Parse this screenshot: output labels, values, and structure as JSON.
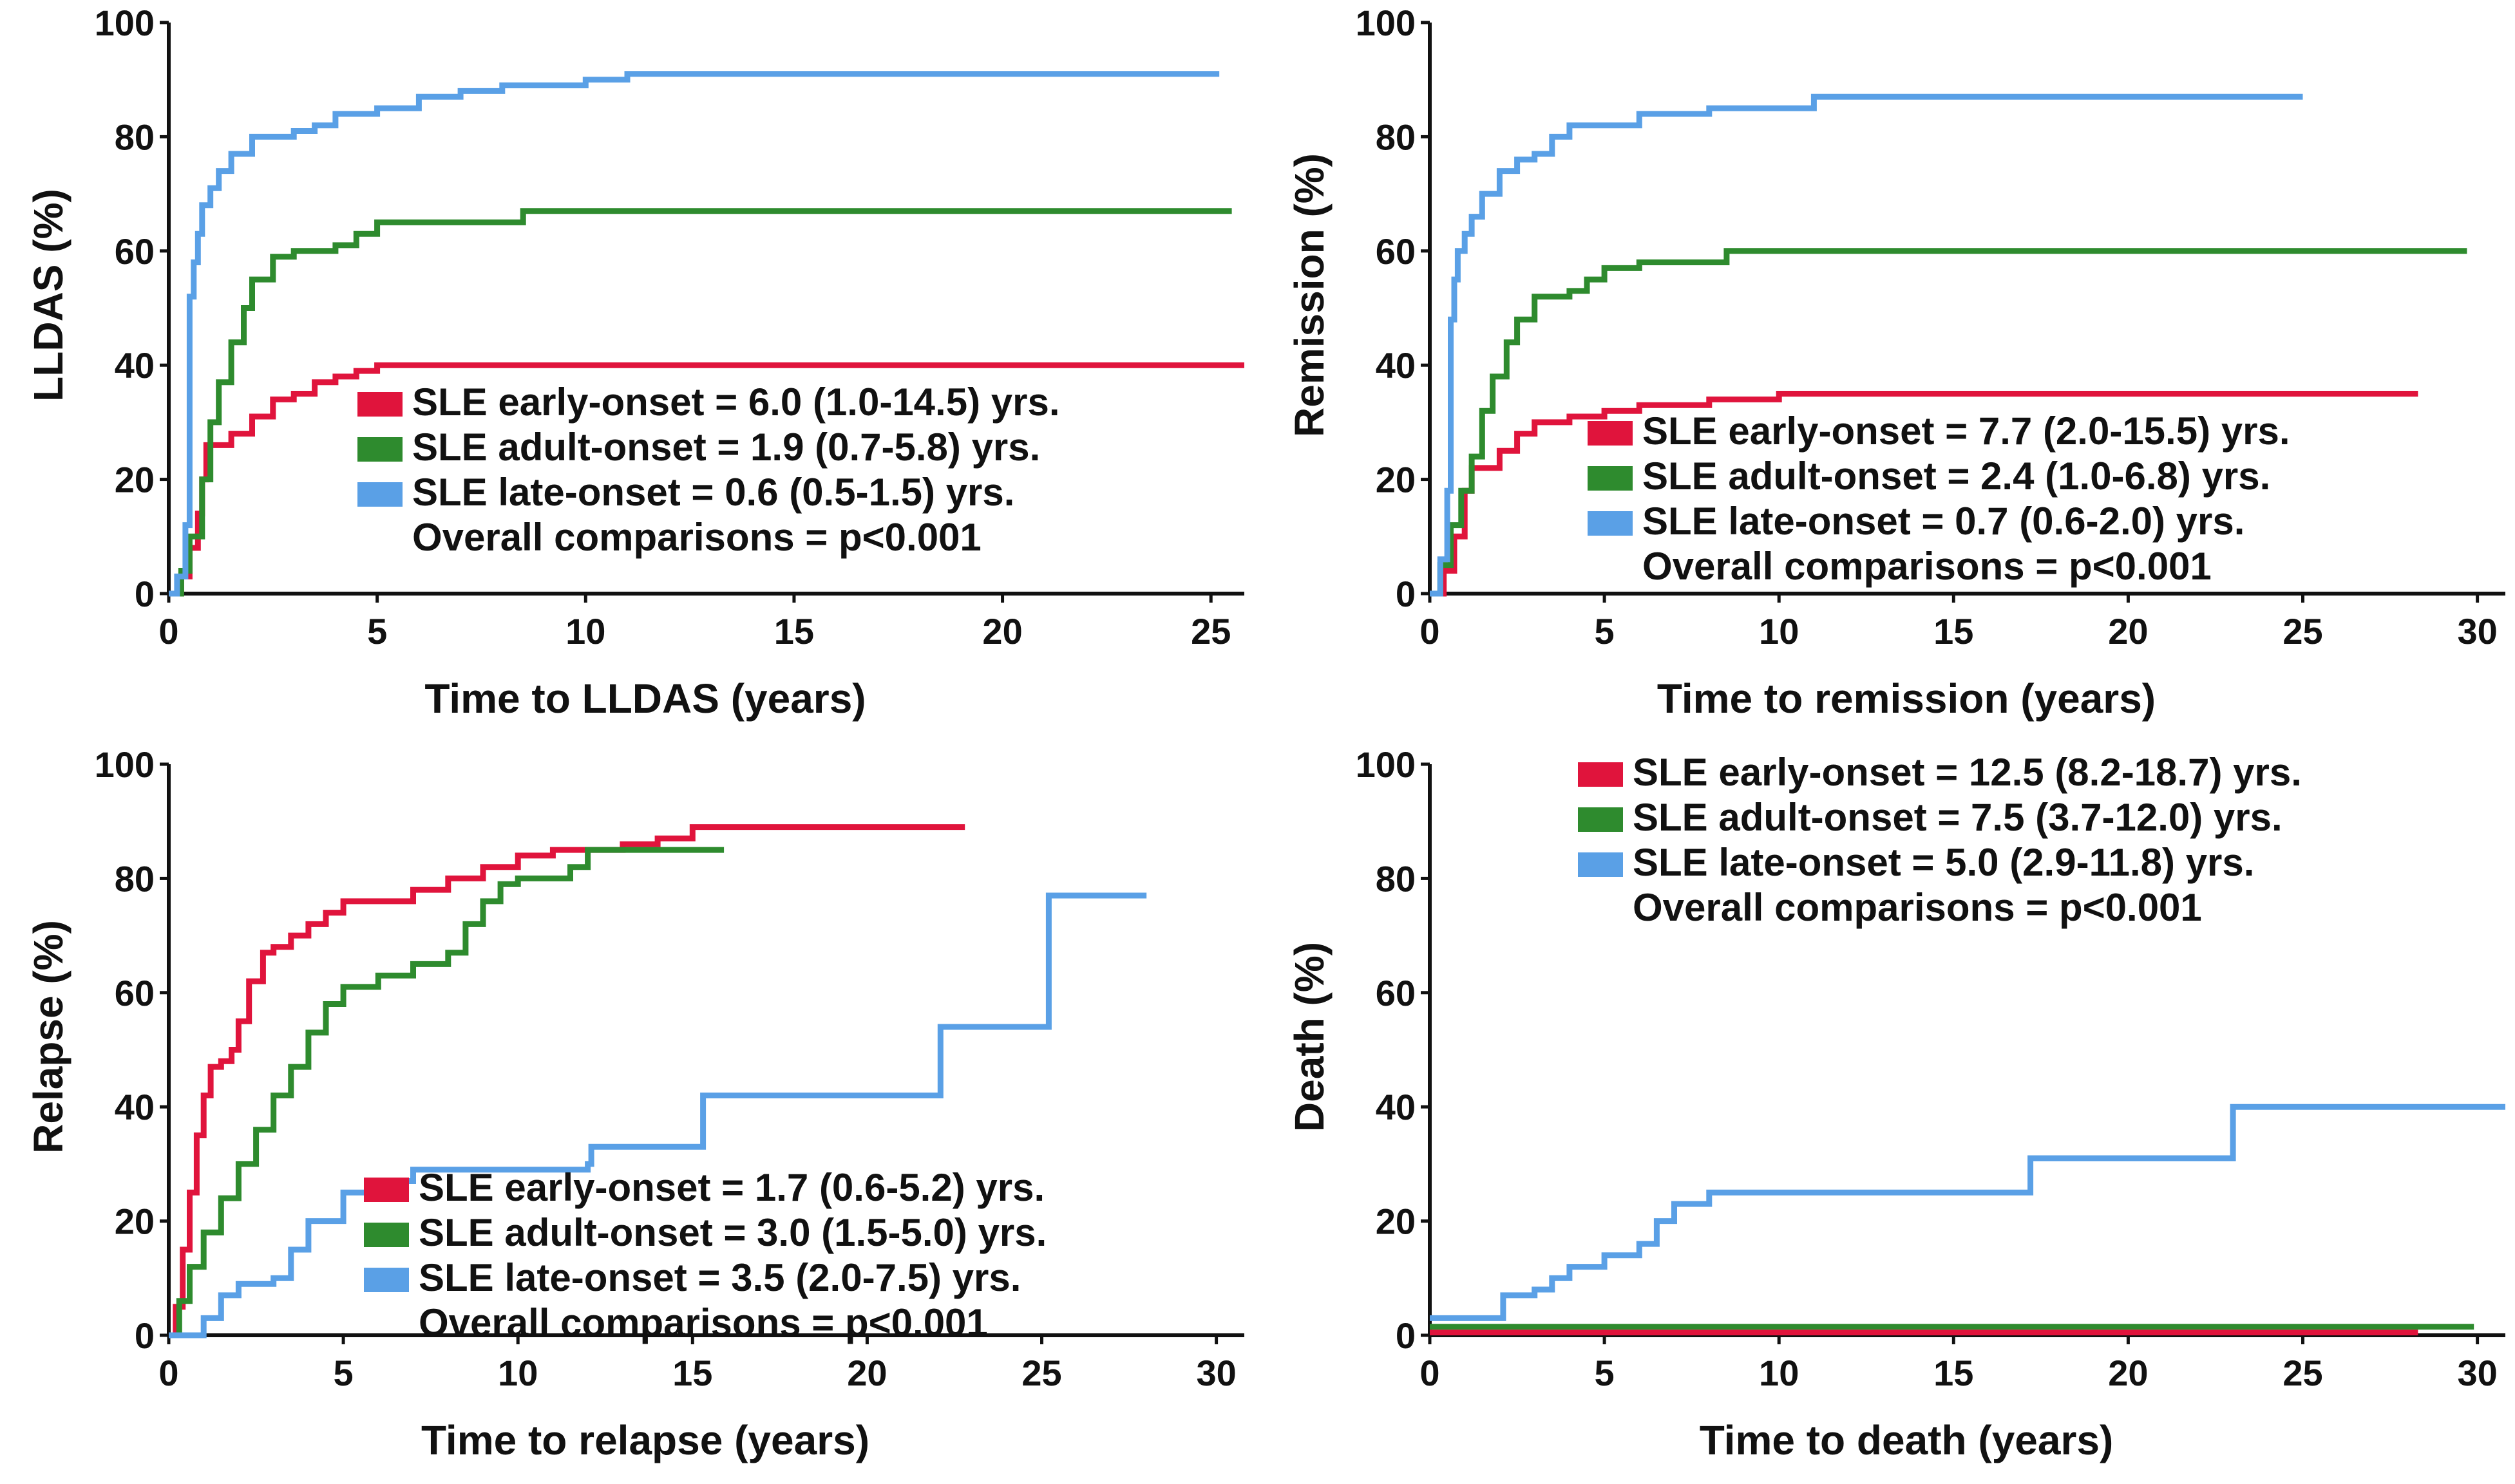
{
  "colors": {
    "early": "#e0143c",
    "adult": "#2e8b2e",
    "late": "#5aa0e6",
    "axis": "#111111"
  },
  "chart_data": [
    {
      "type": "line",
      "ylabel": "LLDAS (%)",
      "xlabel": "Time to LLDAS (years)",
      "xlim": [
        0,
        25.8
      ],
      "ylim": [
        0,
        100
      ],
      "xticks": [
        0,
        5,
        10,
        15,
        20,
        25
      ],
      "yticks": [
        0,
        20,
        40,
        60,
        80,
        100
      ],
      "legend": {
        "position": "bottom-right",
        "items": [
          {
            "series": "early",
            "text": "SLE early-onset = 6.0 (1.0-14.5) yrs."
          },
          {
            "series": "adult",
            "text": "SLE adult-onset = 1.9 (0.7-5.8) yrs."
          },
          {
            "series": "late",
            "text": "SLE late-onset = 0.6 (0.5-1.5) yrs."
          }
        ],
        "note": "Overall comparisons = p<0.001"
      },
      "series": [
        {
          "key": "early",
          "points": [
            [
              0,
              0
            ],
            [
              0.3,
              3
            ],
            [
              0.5,
              8
            ],
            [
              0.7,
              14
            ],
            [
              0.8,
              20
            ],
            [
              0.9,
              26
            ],
            [
              1.2,
              26
            ],
            [
              1.5,
              28
            ],
            [
              2,
              31
            ],
            [
              2.5,
              34
            ],
            [
              3,
              35
            ],
            [
              3.5,
              37
            ],
            [
              4,
              38
            ],
            [
              4.5,
              39
            ],
            [
              5,
              40
            ],
            [
              25.8,
              40
            ]
          ]
        },
        {
          "key": "adult",
          "points": [
            [
              0,
              0
            ],
            [
              0.3,
              4
            ],
            [
              0.5,
              10
            ],
            [
              0.8,
              20
            ],
            [
              1,
              30
            ],
            [
              1.2,
              37
            ],
            [
              1.5,
              44
            ],
            [
              1.8,
              50
            ],
            [
              2,
              55
            ],
            [
              2.5,
              59
            ],
            [
              3,
              60
            ],
            [
              4,
              61
            ],
            [
              4.5,
              63
            ],
            [
              5,
              65
            ],
            [
              6,
              65
            ],
            [
              8.5,
              67
            ],
            [
              25.5,
              67
            ]
          ]
        },
        {
          "key": "late",
          "points": [
            [
              0,
              0
            ],
            [
              0.2,
              3
            ],
            [
              0.4,
              12
            ],
            [
              0.5,
              52
            ],
            [
              0.6,
              58
            ],
            [
              0.7,
              63
            ],
            [
              0.8,
              68
            ],
            [
              1,
              71
            ],
            [
              1.2,
              74
            ],
            [
              1.5,
              77
            ],
            [
              2,
              80
            ],
            [
              3,
              81
            ],
            [
              3.5,
              82
            ],
            [
              4,
              84
            ],
            [
              5,
              85
            ],
            [
              6,
              87
            ],
            [
              7,
              88
            ],
            [
              8,
              89
            ],
            [
              9,
              89
            ],
            [
              10,
              90
            ],
            [
              11,
              91
            ],
            [
              25.2,
              91
            ]
          ]
        }
      ]
    },
    {
      "type": "line",
      "ylabel": "Remission (%)",
      "xlabel": "Time to remission (years)",
      "xlim": [
        0,
        30.8
      ],
      "ylim": [
        0,
        100
      ],
      "xticks": [
        0,
        5,
        10,
        15,
        20,
        25,
        30
      ],
      "yticks": [
        0,
        20,
        40,
        60,
        80,
        100
      ],
      "legend": {
        "position": "bottom-right",
        "items": [
          {
            "series": "early",
            "text": "SLE early-onset = 7.7 (2.0-15.5) yrs."
          },
          {
            "series": "adult",
            "text": "SLE adult-onset = 2.4 (1.0-6.8) yrs."
          },
          {
            "series": "late",
            "text": "SLE late-onset = 0.7 (0.6-2.0) yrs."
          }
        ],
        "note": "Overall comparisons = p<0.001"
      },
      "series": [
        {
          "key": "early",
          "points": [
            [
              0,
              0
            ],
            [
              0.4,
              4
            ],
            [
              0.7,
              10
            ],
            [
              1,
              18
            ],
            [
              1.2,
              22
            ],
            [
              1.5,
              22
            ],
            [
              2,
              25
            ],
            [
              2.5,
              28
            ],
            [
              3,
              30
            ],
            [
              4,
              31
            ],
            [
              5,
              32
            ],
            [
              6,
              33
            ],
            [
              8,
              34
            ],
            [
              10,
              35
            ],
            [
              28.3,
              35
            ]
          ]
        },
        {
          "key": "adult",
          "points": [
            [
              0,
              0
            ],
            [
              0.3,
              5
            ],
            [
              0.6,
              12
            ],
            [
              0.9,
              18
            ],
            [
              1.2,
              24
            ],
            [
              1.5,
              32
            ],
            [
              1.8,
              38
            ],
            [
              2.2,
              44
            ],
            [
              2.5,
              48
            ],
            [
              3,
              52
            ],
            [
              4,
              53
            ],
            [
              4.5,
              55
            ],
            [
              5,
              57
            ],
            [
              6,
              58
            ],
            [
              8.5,
              60
            ],
            [
              29.7,
              60
            ]
          ]
        },
        {
          "key": "late",
          "points": [
            [
              0,
              0
            ],
            [
              0.3,
              6
            ],
            [
              0.5,
              18
            ],
            [
              0.6,
              48
            ],
            [
              0.7,
              55
            ],
            [
              0.8,
              60
            ],
            [
              1,
              63
            ],
            [
              1.2,
              66
            ],
            [
              1.5,
              70
            ],
            [
              2,
              74
            ],
            [
              2.5,
              76
            ],
            [
              3,
              77
            ],
            [
              3.5,
              80
            ],
            [
              4,
              82
            ],
            [
              5,
              82
            ],
            [
              6,
              84
            ],
            [
              8,
              85
            ],
            [
              10.5,
              85
            ],
            [
              11,
              87
            ],
            [
              25,
              87
            ]
          ]
        }
      ]
    },
    {
      "type": "line",
      "ylabel": "Relapse (%)",
      "xlabel": "Time to relapse (years)",
      "xlim": [
        0,
        30.8
      ],
      "ylim": [
        0,
        100
      ],
      "xticks": [
        0,
        5,
        10,
        15,
        20,
        25,
        30
      ],
      "yticks": [
        0,
        20,
        40,
        60,
        80,
        100
      ],
      "legend": {
        "position": "bottom-right",
        "items": [
          {
            "series": "early",
            "text": "SLE early-onset = 1.7 (0.6-5.2) yrs."
          },
          {
            "series": "adult",
            "text": "SLE adult-onset = 3.0 (1.5-5.0) yrs."
          },
          {
            "series": "late",
            "text": "SLE late-onset = 3.5 (2.0-7.5) yrs."
          }
        ],
        "note": "Overall comparisons = p<0.001"
      },
      "series": [
        {
          "key": "early",
          "points": [
            [
              0,
              0
            ],
            [
              0.2,
              5
            ],
            [
              0.4,
              15
            ],
            [
              0.6,
              25
            ],
            [
              0.8,
              35
            ],
            [
              1,
              42
            ],
            [
              1.2,
              47
            ],
            [
              1.5,
              48
            ],
            [
              1.8,
              50
            ],
            [
              2,
              55
            ],
            [
              2.3,
              62
            ],
            [
              2.7,
              67
            ],
            [
              3,
              68
            ],
            [
              3.5,
              70
            ],
            [
              4,
              72
            ],
            [
              4.5,
              74
            ],
            [
              5,
              76
            ],
            [
              6,
              76
            ],
            [
              7,
              78
            ],
            [
              8,
              80
            ],
            [
              9,
              82
            ],
            [
              10,
              84
            ],
            [
              11,
              85
            ],
            [
              13,
              86
            ],
            [
              14,
              87
            ],
            [
              15,
              89
            ],
            [
              22.8,
              89
            ]
          ]
        },
        {
          "key": "adult",
          "points": [
            [
              0,
              0
            ],
            [
              0.3,
              6
            ],
            [
              0.6,
              12
            ],
            [
              1,
              18
            ],
            [
              1.5,
              24
            ],
            [
              2,
              30
            ],
            [
              2.5,
              36
            ],
            [
              3,
              42
            ],
            [
              3.5,
              47
            ],
            [
              4,
              53
            ],
            [
              4.5,
              58
            ],
            [
              5,
              61
            ],
            [
              6,
              63
            ],
            [
              7,
              65
            ],
            [
              8,
              67
            ],
            [
              8.5,
              72
            ],
            [
              9,
              76
            ],
            [
              9.5,
              79
            ],
            [
              10,
              80
            ],
            [
              11.5,
              82
            ],
            [
              12,
              85
            ],
            [
              15.9,
              85
            ]
          ]
        },
        {
          "key": "late",
          "points": [
            [
              0,
              0
            ],
            [
              1,
              3
            ],
            [
              1.5,
              7
            ],
            [
              2,
              9
            ],
            [
              3,
              10
            ],
            [
              3.5,
              15
            ],
            [
              4,
              20
            ],
            [
              5,
              25
            ],
            [
              6,
              27
            ],
            [
              7,
              29
            ],
            [
              12,
              30
            ],
            [
              12.1,
              33
            ],
            [
              15,
              33
            ],
            [
              15.3,
              42
            ],
            [
              22,
              42
            ],
            [
              22.1,
              54
            ],
            [
              25,
              54
            ],
            [
              25.2,
              77
            ],
            [
              28,
              77
            ]
          ]
        }
      ]
    },
    {
      "type": "line",
      "ylabel": "Death (%)",
      "xlabel": "Time to death (years)",
      "xlim": [
        0,
        30.8
      ],
      "ylim": [
        0,
        100
      ],
      "xticks": [
        0,
        5,
        10,
        15,
        20,
        25,
        30
      ],
      "yticks": [
        0,
        20,
        40,
        60,
        80,
        100
      ],
      "legend": {
        "position": "top-right",
        "items": [
          {
            "series": "early",
            "text": "SLE early-onset = 12.5 (8.2-18.7) yrs."
          },
          {
            "series": "adult",
            "text": "SLE adult-onset = 7.5 (3.7-12.0) yrs."
          },
          {
            "series": "late",
            "text": "SLE late-onset = 5.0 (2.9-11.8) yrs."
          }
        ],
        "note": "Overall comparisons = p<0.001"
      },
      "series": [
        {
          "key": "early",
          "points": [
            [
              0,
              0.5
            ],
            [
              28.3,
              0.5
            ]
          ]
        },
        {
          "key": "adult",
          "points": [
            [
              0,
              1.5
            ],
            [
              29.9,
              1.5
            ]
          ]
        },
        {
          "key": "late",
          "points": [
            [
              0,
              3
            ],
            [
              2,
              3
            ],
            [
              2.1,
              7
            ],
            [
              3,
              8
            ],
            [
              3.5,
              10
            ],
            [
              4,
              12
            ],
            [
              5,
              14
            ],
            [
              6,
              16
            ],
            [
              6.5,
              20
            ],
            [
              7,
              23
            ],
            [
              8,
              25
            ],
            [
              17,
              25
            ],
            [
              17.2,
              31
            ],
            [
              22.8,
              31
            ],
            [
              23,
              40
            ],
            [
              30.8,
              40
            ]
          ]
        }
      ]
    }
  ]
}
